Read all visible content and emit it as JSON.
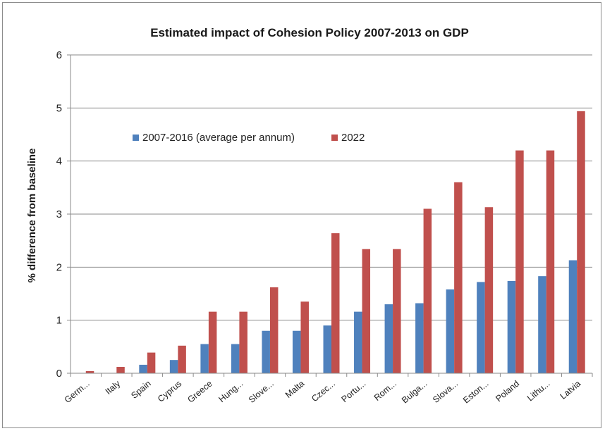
{
  "chart_data": {
    "type": "bar",
    "title": "Estimated impact of Cohesion Policy 2007-2013 on GDP",
    "ylabel": "% difference from baseline",
    "xlabel": "",
    "ylim": [
      0,
      6
    ],
    "yticks": [
      0,
      1,
      2,
      3,
      4,
      5,
      6
    ],
    "grid": true,
    "legend_position": "top-left",
    "categories": [
      "Germ...",
      "Italy",
      "Spain",
      "Cyprus",
      "Greece",
      "Hung...",
      "Slove...",
      "Malta",
      "Czec...",
      "Portu...",
      "Rom...",
      "Bulga...",
      "Slova...",
      "Eston...",
      "Poland",
      "Lithu...",
      "Latvia"
    ],
    "series": [
      {
        "name": "2007-2016 (average per annum)",
        "color": "#4f81bd",
        "values": [
          0.0,
          0.0,
          0.16,
          0.25,
          0.55,
          0.55,
          0.8,
          0.8,
          0.9,
          1.16,
          1.3,
          1.32,
          1.58,
          1.72,
          1.74,
          1.83,
          2.13
        ]
      },
      {
        "name": "2022",
        "color": "#c0504d",
        "values": [
          0.04,
          0.12,
          0.39,
          0.52,
          1.16,
          1.16,
          1.62,
          1.35,
          2.64,
          2.34,
          2.34,
          3.1,
          3.6,
          3.13,
          4.2,
          4.2,
          4.94
        ]
      }
    ]
  }
}
